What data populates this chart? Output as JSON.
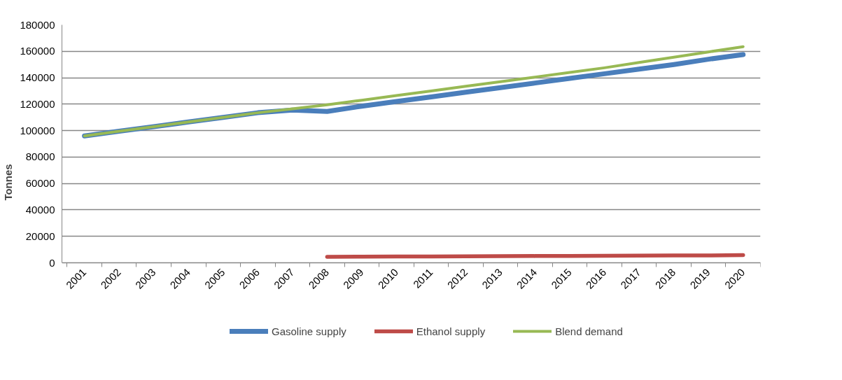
{
  "chart_data": {
    "type": "line",
    "ylabel": "Tonnes",
    "categories": [
      "2001",
      "2002",
      "2003",
      "2004",
      "2005",
      "2006",
      "2007",
      "2008",
      "2009",
      "2010",
      "2011",
      "2012",
      "2013",
      "2014",
      "2015",
      "2016",
      "2017",
      "2018",
      "2019",
      "2020"
    ],
    "series": [
      {
        "name": "Gasoline supply",
        "color": "#4a7ebb",
        "values": [
          96000,
          99500,
          103000,
          106500,
          110000,
          113500,
          115500,
          114500,
          118500,
          122000,
          125500,
          129000,
          132500,
          136000,
          139500,
          143000,
          146500,
          150000,
          154000,
          157500
        ]
      },
      {
        "name": "Ethanol supply",
        "color": "#be4b48",
        "values": [
          null,
          null,
          null,
          null,
          null,
          null,
          null,
          4500,
          4600,
          4700,
          4800,
          4900,
          5000,
          5100,
          5200,
          5300,
          5400,
          5500,
          5600,
          5800
        ]
      },
      {
        "name": "Blend demand",
        "color": "#98b954",
        "values": [
          96000,
          99500,
          103000,
          106500,
          110000,
          113500,
          116500,
          119500,
          123000,
          126500,
          130000,
          133500,
          137000,
          140500,
          144000,
          147500,
          151500,
          155500,
          159500,
          163500
        ]
      }
    ],
    "ylim": [
      0,
      180000
    ],
    "yticks": [
      0,
      20000,
      40000,
      60000,
      80000,
      100000,
      120000,
      140000,
      160000,
      180000
    ],
    "grid": "y",
    "legend": "bottom",
    "marker": "none",
    "line_style": "solid"
  }
}
